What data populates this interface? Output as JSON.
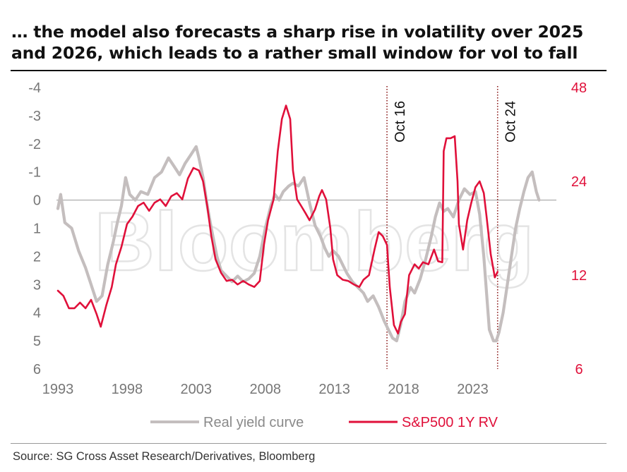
{
  "header": {
    "title_line1": "… the model also forecasts a sharp rise in volatility over 2025",
    "title_line2": "and 2026, which leads to a rather small window for vol to fall"
  },
  "source": "Source: SG Cross Asset Research/Derivatives, Bloomberg",
  "watermark": "Bloomberg",
  "colors": {
    "series_red": "#e0103a",
    "series_grey": "#c4bebe",
    "right_axis": "#e0103a",
    "left_axis": "#777777",
    "zero_line": "#9a9a9a"
  },
  "chart_data": {
    "type": "line",
    "title": "… the model also forecasts a sharp rise in volatility over 2025 and 2026, which leads to a rather small window for vol to fall",
    "xlabel": "",
    "x_ticks": [
      1993,
      1998,
      2003,
      2008,
      2013,
      2018,
      2023
    ],
    "xlim": [
      1992.9,
      2029.0
    ],
    "left_axis": {
      "ticks": [
        -4,
        -3,
        -2,
        -1,
        0,
        1,
        2,
        3,
        4,
        5,
        6
      ],
      "range": [
        -4,
        6
      ],
      "inverted": true
    },
    "right_axis": {
      "ticks": [
        6,
        12,
        24,
        48
      ],
      "range": [
        6,
        48
      ],
      "scale": "log"
    },
    "annotations": [
      {
        "label": "Oct 16",
        "x": 2016.8
      },
      {
        "label": "Oct 24",
        "x": 2024.8
      }
    ],
    "legend_position": "bottom",
    "series": [
      {
        "name": "Real yield curve",
        "axis": "left",
        "points": [
          [
            1993.0,
            0.3
          ],
          [
            1993.2,
            -0.2
          ],
          [
            1993.5,
            0.8
          ],
          [
            1994.0,
            1.0
          ],
          [
            1994.5,
            1.8
          ],
          [
            1995.0,
            2.4
          ],
          [
            1995.4,
            3.0
          ],
          [
            1995.8,
            3.6
          ],
          [
            1996.2,
            3.4
          ],
          [
            1996.6,
            2.3
          ],
          [
            1997.0,
            1.5
          ],
          [
            1997.3,
            0.8
          ],
          [
            1997.6,
            0.2
          ],
          [
            1997.9,
            -0.8
          ],
          [
            1998.2,
            -0.2
          ],
          [
            1998.6,
            0.0
          ],
          [
            1999.0,
            -0.3
          ],
          [
            1999.5,
            -0.2
          ],
          [
            2000.0,
            -0.8
          ],
          [
            2000.5,
            -1.0
          ],
          [
            2001.0,
            -1.5
          ],
          [
            2001.4,
            -1.2
          ],
          [
            2001.8,
            -0.9
          ],
          [
            2002.2,
            -1.3
          ],
          [
            2002.6,
            -1.6
          ],
          [
            2003.0,
            -1.9
          ],
          [
            2003.2,
            -1.5
          ],
          [
            2003.5,
            -0.8
          ],
          [
            2003.8,
            0.2
          ],
          [
            2004.1,
            1.0
          ],
          [
            2004.5,
            2.0
          ],
          [
            2004.8,
            2.5
          ],
          [
            2005.2,
            2.7
          ],
          [
            2005.6,
            2.9
          ],
          [
            2006.0,
            2.7
          ],
          [
            2006.4,
            2.9
          ],
          [
            2006.8,
            2.8
          ],
          [
            2007.2,
            2.6
          ],
          [
            2007.6,
            2.0
          ],
          [
            2008.0,
            1.0
          ],
          [
            2008.4,
            0.2
          ],
          [
            2008.7,
            -0.2
          ],
          [
            2009.0,
            0.0
          ],
          [
            2009.3,
            -0.3
          ],
          [
            2009.7,
            -0.5
          ],
          [
            2010.0,
            -0.6
          ],
          [
            2010.4,
            -0.5
          ],
          [
            2010.8,
            -0.8
          ],
          [
            2011.2,
            0.1
          ],
          [
            2011.6,
            0.9
          ],
          [
            2012.0,
            1.3
          ],
          [
            2012.3,
            1.7
          ],
          [
            2012.6,
            2.0
          ],
          [
            2012.9,
            1.8
          ],
          [
            2013.3,
            2.0
          ],
          [
            2013.6,
            2.3
          ],
          [
            2013.9,
            2.6
          ],
          [
            2014.3,
            2.9
          ],
          [
            2014.7,
            3.1
          ],
          [
            2015.1,
            3.3
          ],
          [
            2015.4,
            3.6
          ],
          [
            2015.8,
            3.4
          ],
          [
            2016.2,
            3.8
          ],
          [
            2016.6,
            4.3
          ],
          [
            2016.9,
            4.6
          ],
          [
            2017.2,
            4.9
          ],
          [
            2017.5,
            5.0
          ],
          [
            2017.8,
            4.4
          ],
          [
            2018.1,
            3.6
          ],
          [
            2018.5,
            3.1
          ],
          [
            2018.8,
            3.3
          ],
          [
            2019.2,
            2.8
          ],
          [
            2019.6,
            2.1
          ],
          [
            2020.0,
            1.3
          ],
          [
            2020.3,
            0.6
          ],
          [
            2020.6,
            0.1
          ],
          [
            2020.9,
            0.4
          ],
          [
            2021.2,
            0.3
          ],
          [
            2021.6,
            0.6
          ],
          [
            2022.0,
            0.0
          ],
          [
            2022.4,
            -0.4
          ],
          [
            2022.8,
            -0.2
          ],
          [
            2023.2,
            -0.3
          ],
          [
            2023.5,
            0.5
          ],
          [
            2023.8,
            2.0
          ],
          [
            2024.0,
            3.3
          ],
          [
            2024.2,
            4.6
          ],
          [
            2024.5,
            5.0
          ],
          [
            2024.7,
            5.0
          ],
          [
            2024.9,
            4.7
          ],
          [
            2025.2,
            4.0
          ],
          [
            2025.5,
            3.0
          ],
          [
            2025.8,
            2.0
          ],
          [
            2026.1,
            1.0
          ],
          [
            2026.4,
            0.3
          ],
          [
            2026.7,
            -0.3
          ],
          [
            2027.0,
            -0.8
          ],
          [
            2027.3,
            -1.0
          ],
          [
            2027.6,
            -0.3
          ],
          [
            2027.8,
            0.0
          ]
        ]
      },
      {
        "name": "S&P500 1Y RV",
        "axis": "right",
        "points": [
          [
            1993.0,
            10.7
          ],
          [
            1993.4,
            10.3
          ],
          [
            1993.8,
            9.4
          ],
          [
            1994.2,
            9.4
          ],
          [
            1994.6,
            9.8
          ],
          [
            1995.0,
            9.4
          ],
          [
            1995.4,
            10.0
          ],
          [
            1995.8,
            9.0
          ],
          [
            1996.1,
            8.2
          ],
          [
            1996.5,
            9.6
          ],
          [
            1996.9,
            11.0
          ],
          [
            1997.2,
            13.0
          ],
          [
            1997.6,
            14.8
          ],
          [
            1998.0,
            17.5
          ],
          [
            1998.4,
            18.5
          ],
          [
            1998.8,
            20.0
          ],
          [
            1999.2,
            20.5
          ],
          [
            1999.6,
            19.3
          ],
          [
            2000.0,
            20.5
          ],
          [
            2000.4,
            21.0
          ],
          [
            2000.8,
            20.0
          ],
          [
            2001.2,
            21.5
          ],
          [
            2001.6,
            22.0
          ],
          [
            2002.0,
            21.0
          ],
          [
            2002.4,
            24.5
          ],
          [
            2002.8,
            26.5
          ],
          [
            2003.2,
            26.0
          ],
          [
            2003.5,
            24.0
          ],
          [
            2003.8,
            20.0
          ],
          [
            2004.1,
            16.0
          ],
          [
            2004.4,
            13.5
          ],
          [
            2004.8,
            12.2
          ],
          [
            2005.2,
            11.5
          ],
          [
            2005.6,
            11.6
          ],
          [
            2006.0,
            11.2
          ],
          [
            2006.4,
            11.5
          ],
          [
            2006.8,
            11.2
          ],
          [
            2007.2,
            11.0
          ],
          [
            2007.6,
            11.5
          ],
          [
            2007.9,
            15.0
          ],
          [
            2008.2,
            18.0
          ],
          [
            2008.6,
            21.0
          ],
          [
            2008.9,
            30.0
          ],
          [
            2009.2,
            38.0
          ],
          [
            2009.5,
            42.0
          ],
          [
            2009.8,
            38.0
          ],
          [
            2010.0,
            26.0
          ],
          [
            2010.3,
            21.0
          ],
          [
            2010.6,
            20.0
          ],
          [
            2010.9,
            19.0
          ],
          [
            2011.2,
            18.0
          ],
          [
            2011.6,
            19.5
          ],
          [
            2011.9,
            21.5
          ],
          [
            2012.1,
            22.5
          ],
          [
            2012.4,
            21.0
          ],
          [
            2012.7,
            17.0
          ],
          [
            2012.9,
            13.5
          ],
          [
            2013.2,
            12.0
          ],
          [
            2013.6,
            11.6
          ],
          [
            2014.0,
            11.5
          ],
          [
            2014.4,
            11.2
          ],
          [
            2014.8,
            11.0
          ],
          [
            2015.1,
            11.6
          ],
          [
            2015.5,
            12.0
          ],
          [
            2015.9,
            14.5
          ],
          [
            2016.2,
            16.5
          ],
          [
            2016.5,
            16.0
          ],
          [
            2016.8,
            15.0
          ],
          [
            2017.0,
            11.0
          ],
          [
            2017.3,
            8.3
          ],
          [
            2017.6,
            7.8
          ],
          [
            2017.8,
            8.5
          ],
          [
            2018.1,
            9.0
          ],
          [
            2018.4,
            12.0
          ],
          [
            2018.8,
            13.0
          ],
          [
            2019.1,
            12.6
          ],
          [
            2019.4,
            13.2
          ],
          [
            2019.8,
            13.0
          ],
          [
            2020.2,
            14.5
          ],
          [
            2020.5,
            13.3
          ],
          [
            2020.8,
            13.2
          ],
          [
            2020.9,
            30.0
          ],
          [
            2021.1,
            33.0
          ],
          [
            2021.4,
            33.0
          ],
          [
            2021.7,
            33.5
          ],
          [
            2021.9,
            24.0
          ],
          [
            2022.0,
            17.5
          ],
          [
            2022.3,
            14.5
          ],
          [
            2022.6,
            18.0
          ],
          [
            2022.9,
            20.5
          ],
          [
            2023.2,
            23.0
          ],
          [
            2023.5,
            24.0
          ],
          [
            2023.8,
            22.0
          ],
          [
            2024.0,
            18.5
          ],
          [
            2024.3,
            14.0
          ],
          [
            2024.5,
            12.5
          ],
          [
            2024.6,
            11.8
          ],
          [
            2024.8,
            12.3
          ]
        ]
      }
    ]
  },
  "legend": {
    "items": [
      {
        "label": "Real yield curve"
      },
      {
        "label": "S&P500 1Y RV"
      }
    ]
  }
}
